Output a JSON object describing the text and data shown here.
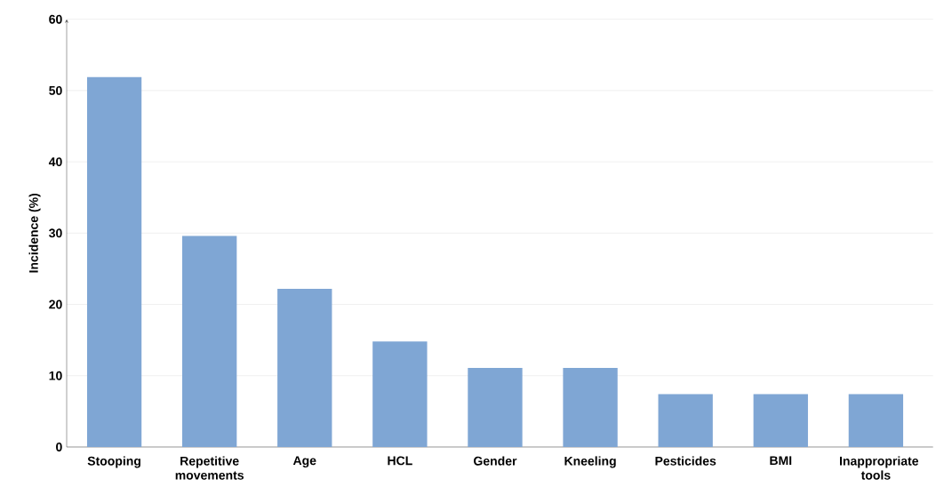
{
  "chart_data": {
    "type": "bar",
    "ylabel": "Incidence (%)",
    "categories": [
      "Stooping",
      "Repetitive movements",
      "Age",
      "HCL",
      "Gender",
      "Kneeling",
      "Pesticides",
      "BMI",
      "Inappropriate tools"
    ],
    "values": [
      51.9,
      29.6,
      22.2,
      14.8,
      11.1,
      11.1,
      7.4,
      7.4,
      7.4
    ],
    "color": "#7fa6d4",
    "ylim": [
      0,
      60
    ],
    "yticks": [
      0,
      10,
      20,
      30,
      40,
      50,
      60
    ],
    "grid": "y"
  }
}
